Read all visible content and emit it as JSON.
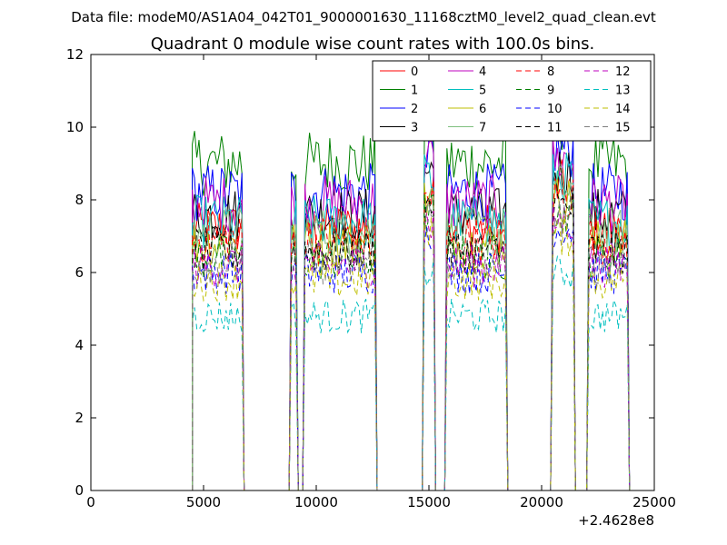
{
  "chart_data": {
    "type": "line",
    "suptitle": "Data file: modeM0/AS1A04_042T01_9000001630_11168cztM0_level2_quad_clean.evt",
    "title": "Quadrant 0 module wise count rates with 100.0s bins.",
    "xlabel": "",
    "ylabel": "",
    "x_offset_label": "+2.4628e8",
    "xlim": [
      0,
      25000
    ],
    "ylim": [
      0,
      12
    ],
    "xticks": [
      0,
      5000,
      10000,
      15000,
      20000,
      25000
    ],
    "yticks": [
      0,
      2,
      4,
      6,
      8,
      10,
      12
    ],
    "grid": false,
    "legend_position": "top-right",
    "legend_columns": 4,
    "segments": [
      [
        4500,
        6700
      ],
      [
        8900,
        9100
      ],
      [
        9500,
        12600
      ],
      [
        14800,
        15200
      ],
      [
        15800,
        18400
      ],
      [
        20500,
        21400
      ],
      [
        22100,
        23800
      ]
    ],
    "series": [
      {
        "name": "0",
        "color": "#ff0000",
        "dash": "solid",
        "level": 7.2
      },
      {
        "name": "1",
        "color": "#008000",
        "dash": "solid",
        "level": 9.0
      },
      {
        "name": "2",
        "color": "#0000ff",
        "dash": "solid",
        "level": 8.2
      },
      {
        "name": "3",
        "color": "#000000",
        "dash": "solid",
        "level": 7.6
      },
      {
        "name": "4",
        "color": "#bf00bf",
        "dash": "solid",
        "level": 7.9
      },
      {
        "name": "5",
        "color": "#00bfbf",
        "dash": "solid",
        "level": 7.4
      },
      {
        "name": "6",
        "color": "#bfbf00",
        "dash": "solid",
        "level": 6.8
      },
      {
        "name": "7",
        "color": "#7fbf7f",
        "dash": "solid",
        "level": 7.1
      },
      {
        "name": "8",
        "color": "#ff0000",
        "dash": "dashed",
        "level": 6.9
      },
      {
        "name": "9",
        "color": "#008000",
        "dash": "dashed",
        "level": 6.4
      },
      {
        "name": "10",
        "color": "#0000ff",
        "dash": "dashed",
        "level": 6.0
      },
      {
        "name": "11",
        "color": "#000000",
        "dash": "dashed",
        "level": 6.6
      },
      {
        "name": "12",
        "color": "#bf00bf",
        "dash": "dashed",
        "level": 6.2
      },
      {
        "name": "13",
        "color": "#00bfbf",
        "dash": "dashed",
        "level": 4.8
      },
      {
        "name": "14",
        "color": "#bfbf00",
        "dash": "dashed",
        "level": 5.8
      },
      {
        "name": "15",
        "color": "#7f7f7f",
        "dash": "dashed",
        "level": 6.3
      }
    ]
  }
}
